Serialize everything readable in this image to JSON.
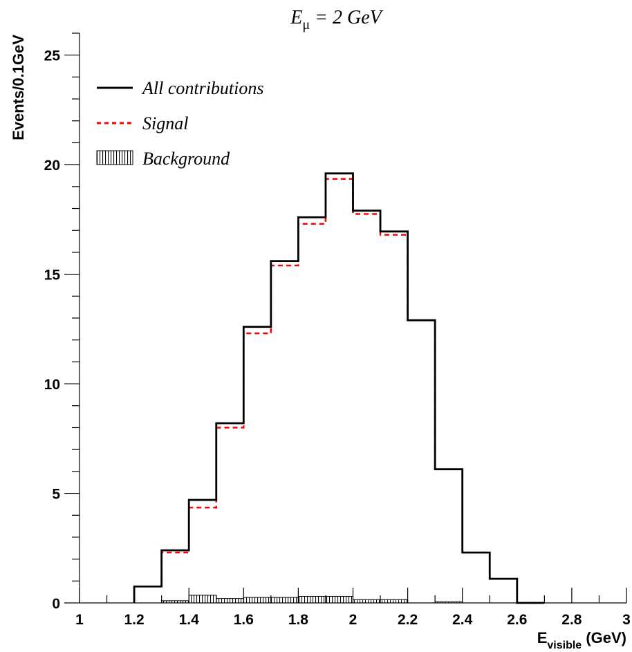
{
  "chart_data": {
    "type": "histogram",
    "title": {
      "main": "E",
      "sub": "μ",
      "rest": " = 2 GeV"
    },
    "xlabel": {
      "main": "E",
      "sub": "visible",
      "rest": " (GeV)"
    },
    "ylabel": "Events/0.1GeV",
    "xlim": [
      1,
      3
    ],
    "ylim": [
      0,
      26
    ],
    "xticks": [
      "1",
      "1.2",
      "1.4",
      "1.6",
      "1.8",
      "2",
      "2.2",
      "2.4",
      "2.6",
      "2.8",
      "3"
    ],
    "yticks": [
      "0",
      "5",
      "10",
      "15",
      "20",
      "25"
    ],
    "bin_edges": [
      1.0,
      1.1,
      1.2,
      1.3,
      1.4,
      1.5,
      1.6,
      1.7,
      1.8,
      1.9,
      2.0,
      2.1,
      2.2,
      2.3,
      2.4,
      2.5,
      2.6,
      2.7,
      2.8,
      2.9,
      3.0
    ],
    "series": [
      {
        "name": "All contributions",
        "style": "solid",
        "color": "#000000",
        "values": [
          0,
          0,
          0.75,
          2.4,
          4.7,
          8.2,
          12.6,
          15.6,
          17.6,
          19.6,
          17.9,
          16.95,
          12.9,
          6.1,
          2.3,
          1.1,
          0,
          0,
          0,
          0
        ]
      },
      {
        "name": "Signal",
        "style": "dashed",
        "color": "#ff0000",
        "values": [
          0,
          0,
          0.75,
          2.3,
          4.35,
          8.0,
          12.3,
          15.4,
          17.3,
          19.35,
          17.75,
          16.8,
          12.9,
          6.1,
          2.3,
          1.1,
          0,
          0,
          0,
          0
        ]
      },
      {
        "name": "Background",
        "style": "hatched",
        "color": "#000000",
        "values": [
          0,
          0,
          0,
          0.1,
          0.35,
          0.2,
          0.25,
          0.25,
          0.3,
          0.3,
          0.15,
          0.15,
          0,
          0.05,
          0,
          0,
          0,
          0,
          0,
          0
        ]
      }
    ],
    "legend": {
      "position": "top-left",
      "entries": [
        "All contributions",
        "Signal",
        "Background"
      ]
    },
    "grid": false
  }
}
